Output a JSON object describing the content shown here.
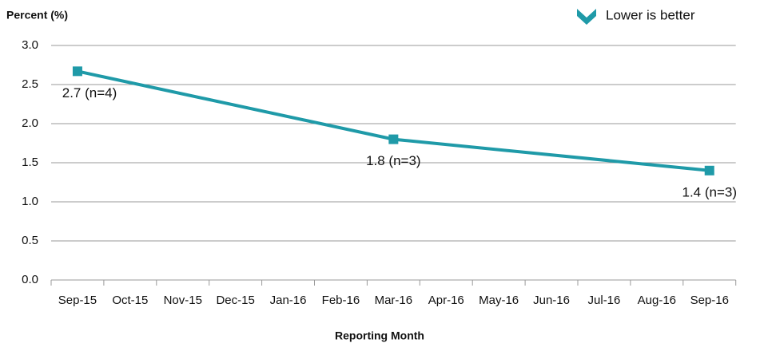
{
  "chart_data": {
    "type": "line",
    "y_label": "Percent (%)",
    "x_label": "Reporting Month",
    "legend": "Lower is better",
    "categories": [
      "Sep-15",
      "Oct-15",
      "Nov-15",
      "Dec-15",
      "Jan-16",
      "Feb-16",
      "Mar-16",
      "Apr-16",
      "May-16",
      "Jun-16",
      "Jul-16",
      "Aug-16",
      "Sep-16"
    ],
    "series": [
      {
        "x": [
          "Sep-15",
          "Mar-16",
          "Sep-16"
        ],
        "values": [
          2.67,
          1.8,
          1.4
        ],
        "value_labels": [
          "2.7 (n=4)",
          "1.8 (n=3)",
          "1.4 (n=3)"
        ],
        "color": "#1f9aa8"
      }
    ],
    "ylim": [
      0,
      3
    ],
    "yticks": [
      {
        "value": 0,
        "label": "0.0"
      },
      0.5,
      {
        "value": 1,
        "label": "1.0"
      },
      1.5,
      {
        "value": 2,
        "label": "2.0"
      },
      2.5,
      {
        "value": 3,
        "label": "3.0"
      }
    ],
    "grid": true
  }
}
